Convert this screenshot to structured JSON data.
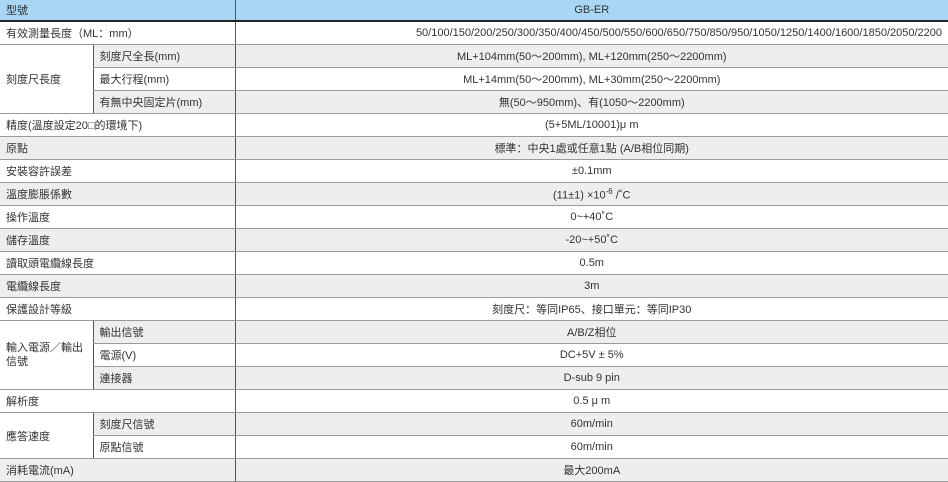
{
  "header": {
    "label": "型號",
    "model": "GB-ER"
  },
  "rows": {
    "effective_length": {
      "label": "有效測量長度（ML：mm）",
      "value": "50/100/150/200/250/300/350/400/450/500/550/600/650/750/850/950/1050/1250/1400/1600/1850/2050/2200"
    },
    "scale_length": {
      "label": "刻度尺長度",
      "items": [
        {
          "label": "刻度尺全長(mm)",
          "value": "ML+104mm(50～200mm), ML+120mm(250～2200mm)"
        },
        {
          "label": "最大行程(mm)",
          "value": "ML+14mm(50～200mm), ML+30mm(250～2200mm)"
        },
        {
          "label": "有無中央固定片(mm)",
          "value": "無(50～950mm)、有(1050～2200mm)"
        }
      ]
    },
    "accuracy": {
      "label": "精度(溫度設定20□的環境下)",
      "value": "(5+5ML/10001)μ m"
    },
    "origin": {
      "label": "原點",
      "value": "標準：中央1處或任意1點 (A/B相位同期)"
    },
    "mounting_tolerance": {
      "label": "安裝容許誤差",
      "value": "±0.1mm"
    },
    "thermal_expansion": {
      "label": "溫度膨脹係數",
      "value_pre": "(11±1) ×10",
      "value_sup": "-6",
      "value_post": " /˚C"
    },
    "operating_temp": {
      "label": "操作溫度",
      "value": "0~+40˚C"
    },
    "storage_temp": {
      "label": "儲存溫度",
      "value": "-20~+50˚C"
    },
    "head_cable": {
      "label": "讀取頭電纜線長度",
      "value": "0.5m"
    },
    "cable": {
      "label": "電纜線長度",
      "value": "3m"
    },
    "protection": {
      "label": "保護設計等級",
      "value": "刻度尺：等同IP65、接口單元：等同IP30"
    },
    "io": {
      "label": "輸入電源／輸出信號",
      "items": [
        {
          "label": "輸出信號",
          "value": "A/B/Z相位"
        },
        {
          "label": "電源(V)",
          "value": "DC+5V ± 5%"
        },
        {
          "label": "連接器",
          "value": "D-sub 9 pin"
        }
      ]
    },
    "resolution": {
      "label": "解析度",
      "value": "0.5 μ m"
    },
    "response": {
      "label": "應答速度",
      "items": [
        {
          "label": "刻度尺信號",
          "value": "60m/min"
        },
        {
          "label": "原點信號",
          "value": "60m/min"
        }
      ]
    },
    "current": {
      "label": "消耗電流(mA)",
      "value": "最大200mA"
    }
  },
  "colors": {
    "header_bg": "#a9d6f5",
    "stripe": "#eeeeee"
  }
}
